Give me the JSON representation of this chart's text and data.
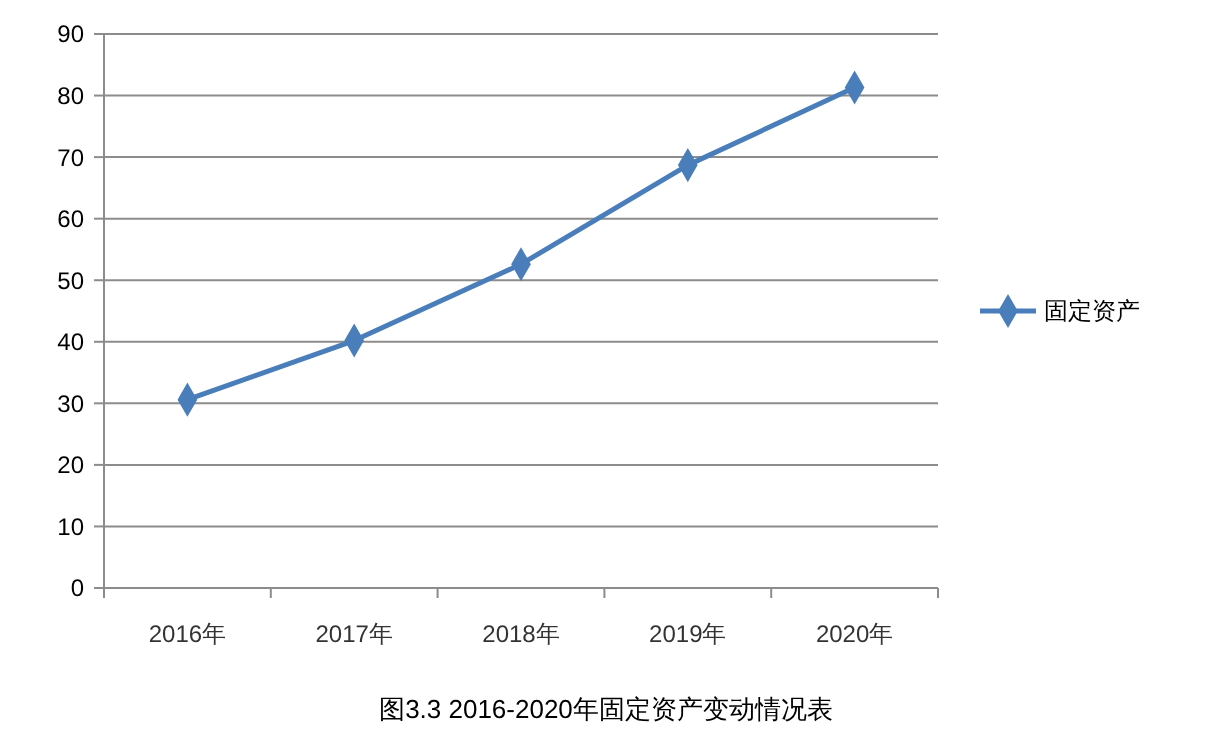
{
  "chart_data": {
    "type": "line",
    "title": "图3.3 2016-2020年固定资产变动情况表",
    "categories": [
      "2016年",
      "2017年",
      "2018年",
      "2019年",
      "2020年"
    ],
    "series": [
      {
        "name": "固定资产",
        "color": "#4a7ebb",
        "values": [
          30.6,
          40.2,
          52.6,
          68.7,
          81.3
        ]
      }
    ],
    "ylim": [
      0,
      90
    ],
    "yticks": [
      0,
      10,
      20,
      30,
      40,
      50,
      60,
      70,
      80,
      90
    ],
    "grid": "y",
    "legend": "right",
    "marker": "diamond",
    "line_style": "solid"
  }
}
